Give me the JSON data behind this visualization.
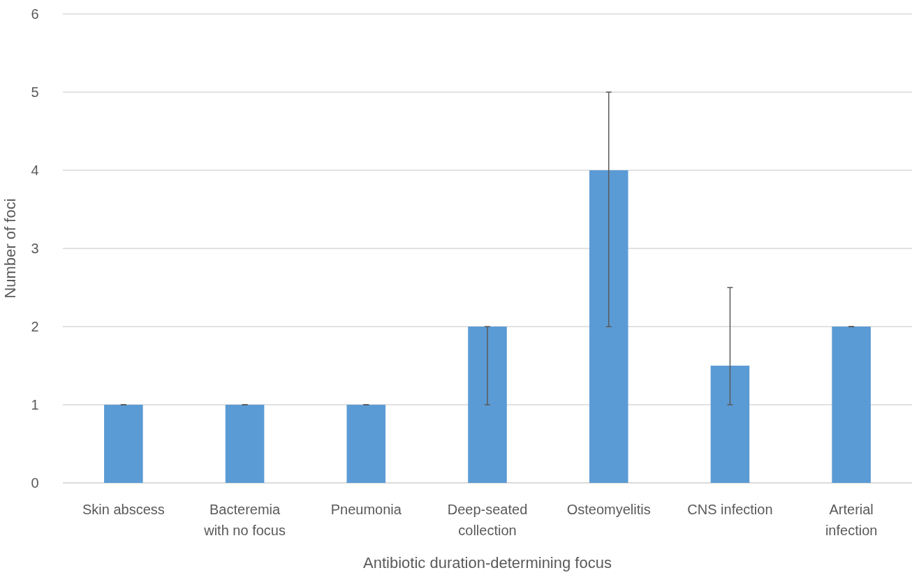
{
  "chart_data": {
    "type": "bar",
    "xlabel": "Antibiotic duration-determining focus",
    "ylabel": "Number of foci",
    "categories": [
      "Skin abscess",
      "Bacteremia with no focus",
      "Pneumonia",
      "Deep-seated collection",
      "Osteomyelitis",
      "CNS infection",
      "Arterial infection"
    ],
    "values": [
      1,
      1,
      1,
      2,
      4,
      1.5,
      2
    ],
    "errors": [
      [
        1,
        1
      ],
      [
        1,
        1
      ],
      [
        1,
        1
      ],
      [
        1,
        2
      ],
      [
        2,
        5
      ],
      [
        1,
        2.5
      ],
      [
        2,
        2
      ]
    ],
    "color": "#5b9bd5",
    "ylim": [
      0,
      6
    ],
    "yticks": [
      0,
      1,
      2,
      3,
      4,
      5,
      6
    ],
    "grid": "y"
  }
}
